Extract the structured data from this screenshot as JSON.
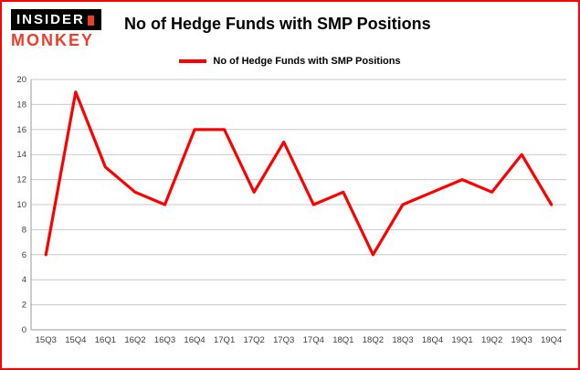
{
  "logo": {
    "line1": "INSIDER",
    "line2": "MONKEY"
  },
  "header": {
    "title": "No of Hedge Funds with SMP Positions"
  },
  "legend": {
    "label": "No of Hedge Funds with SMP Positions",
    "color": "#ff0000"
  },
  "chart_data": {
    "type": "line",
    "title": "No of Hedge Funds with SMP Positions",
    "categories": [
      "15Q3",
      "15Q4",
      "16Q1",
      "16Q2",
      "16Q3",
      "16Q4",
      "17Q1",
      "17Q2",
      "17Q3",
      "17Q4",
      "18Q1",
      "18Q2",
      "18Q3",
      "18Q4",
      "19Q1",
      "19Q2",
      "19Q3",
      "19Q4"
    ],
    "series": [
      {
        "name": "No of Hedge Funds with SMP Positions",
        "color": "#ff0000",
        "values": [
          6,
          19,
          13,
          11,
          10,
          16,
          16,
          11,
          15,
          10,
          11,
          6,
          10,
          11,
          12,
          11,
          14,
          10
        ]
      }
    ],
    "xlabel": "",
    "ylabel": "",
    "ylim": [
      0,
      20
    ],
    "ytick_step": 2,
    "grid": true,
    "legend_position": "top",
    "colors": {
      "line": "#ff0000",
      "gridline": "#c9c9c9",
      "axis": "#9a9a9a",
      "tick_text": "#3f3f3f",
      "frame": "#ff0000"
    }
  }
}
